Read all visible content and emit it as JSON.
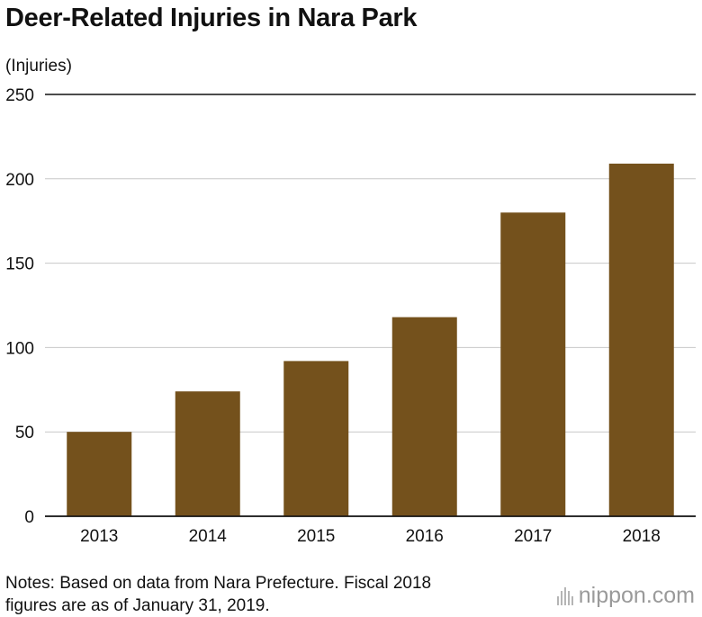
{
  "chart_data": {
    "type": "bar",
    "title": "Deer-Related Injuries in Nara Park",
    "ylabel": "(Injuries)",
    "xlabel": "",
    "categories": [
      "2013",
      "2014",
      "2015",
      "2016",
      "2017",
      "2018"
    ],
    "values": [
      50,
      74,
      92,
      118,
      180,
      209
    ],
    "ylim": [
      0,
      250
    ],
    "yticks": [
      0,
      50,
      100,
      150,
      200,
      250
    ],
    "grid": true,
    "bar_color": "#74511c"
  },
  "notes": {
    "line1": "Notes: Based on data from Nara Prefecture. Fiscal 2018",
    "line2": "figures are as of January 31, 2019."
  },
  "brand": {
    "name": "nippon",
    "suffix": ".com"
  }
}
